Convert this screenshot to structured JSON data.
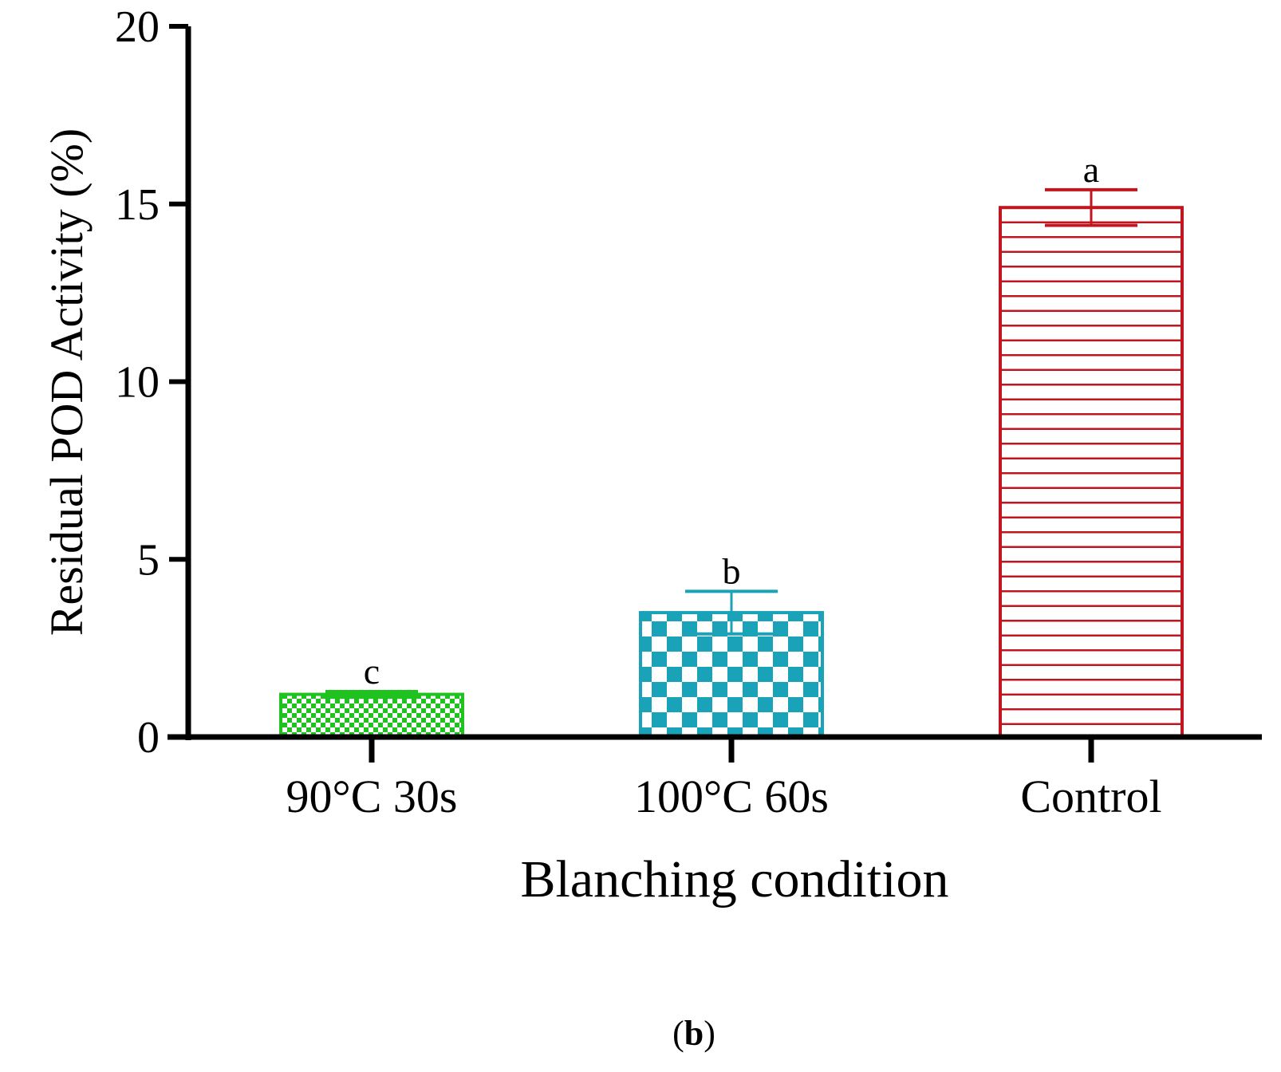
{
  "panel_label": {
    "open": "(",
    "letter": "b",
    "close": ")"
  },
  "chart_data": {
    "type": "bar",
    "title": "",
    "xlabel": "Blanching condition",
    "ylabel": "Residual POD Activity (%)",
    "ylim": [
      0,
      20
    ],
    "yticks": [
      0,
      5,
      10,
      15,
      20
    ],
    "grid": false,
    "categories": [
      "90°C 30s",
      "100°C 60s",
      "Control"
    ],
    "values": [
      1.2,
      3.5,
      14.9
    ],
    "errors": [
      0.08,
      0.6,
      0.5
    ],
    "significance": [
      "c",
      "b",
      "a"
    ],
    "colors": [
      "#1fc21f",
      "#1aa2b8",
      "#c0161f"
    ],
    "patterns": [
      "small-checker",
      "large-checker",
      "horizontal-lines"
    ]
  }
}
